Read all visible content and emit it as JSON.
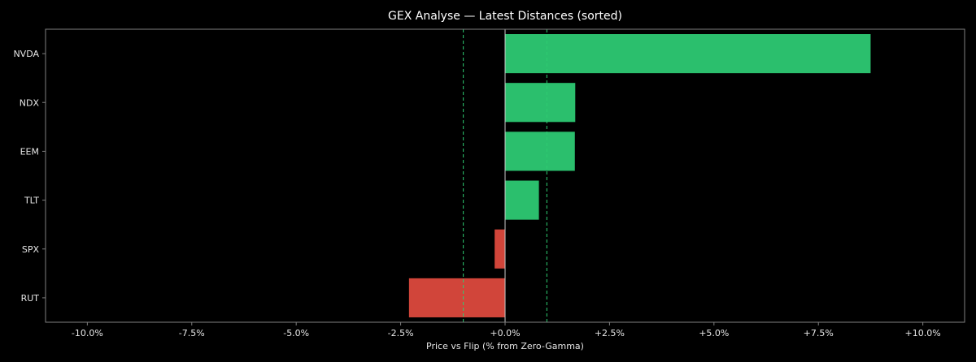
{
  "chart_data": {
    "type": "bar",
    "orientation": "horizontal",
    "title": "GEX Analyse — Latest Distances (sorted)",
    "xlabel": "Price vs Flip (% from Zero-Gamma)",
    "ylabel": "",
    "xlim": [
      -11.0,
      11.0
    ],
    "x_ticks": [
      -10.0,
      -7.5,
      -5.0,
      -2.5,
      0.0,
      2.5,
      5.0,
      7.5,
      10.0
    ],
    "x_tick_labels": [
      "-10.0%",
      "-7.5%",
      "-5.0%",
      "-2.5%",
      "+0.0%",
      "+2.5%",
      "+5.0%",
      "+7.5%",
      "+10.0%"
    ],
    "categories": [
      "NVDA",
      "NDX",
      "EEM",
      "TLT",
      "SPX",
      "RUT"
    ],
    "values": [
      8.75,
      1.68,
      1.67,
      0.81,
      -0.25,
      -2.3
    ],
    "reference_lines": [
      {
        "value": -1.0,
        "style": "dashed",
        "color": "#2ecc71"
      },
      {
        "value": 1.0,
        "style": "dashed",
        "color": "#2ecc71"
      },
      {
        "value": 0.0,
        "style": "solid",
        "color": "#cccccc"
      }
    ],
    "grid": false,
    "legend": "none",
    "colors": {
      "positive": "#2bbf6d",
      "negative": "#d1453a",
      "background": "#000000",
      "frame": "#7f7f7f"
    }
  }
}
